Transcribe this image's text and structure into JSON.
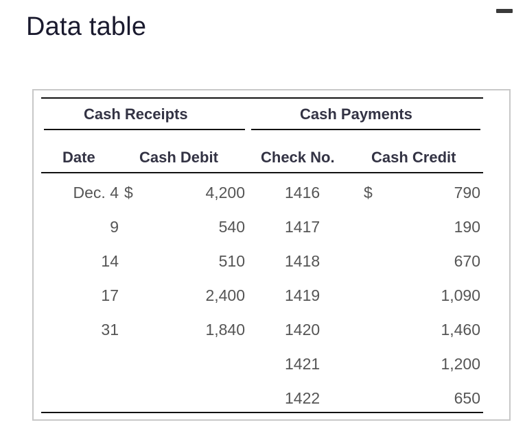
{
  "window": {
    "title": "Data table"
  },
  "table": {
    "group_headers": {
      "receipts": "Cash Receipts",
      "payments": "Cash Payments"
    },
    "columns": {
      "date": "Date",
      "cash_debit": "Cash Debit",
      "check_no": "Check No.",
      "cash_credit": "Cash Credit"
    },
    "rows": [
      {
        "date": "Dec. 4",
        "debit_sym": "$",
        "debit": "4,200",
        "check": "1416",
        "credit_sym": "$",
        "credit": "790"
      },
      {
        "date": "9",
        "debit_sym": "",
        "debit": "540",
        "check": "1417",
        "credit_sym": "",
        "credit": "190"
      },
      {
        "date": "14",
        "debit_sym": "",
        "debit": "510",
        "check": "1418",
        "credit_sym": "",
        "credit": "670"
      },
      {
        "date": "17",
        "debit_sym": "",
        "debit": "2,400",
        "check": "1419",
        "credit_sym": "",
        "credit": "1,090"
      },
      {
        "date": "31",
        "debit_sym": "",
        "debit": "1,840",
        "check": "1420",
        "credit_sym": "",
        "credit": "1,460"
      },
      {
        "date": "",
        "debit_sym": "",
        "debit": "",
        "check": "1421",
        "credit_sym": "",
        "credit": "1,200"
      },
      {
        "date": "",
        "debit_sym": "",
        "debit": "",
        "check": "1422",
        "credit_sym": "",
        "credit": "650"
      }
    ]
  }
}
